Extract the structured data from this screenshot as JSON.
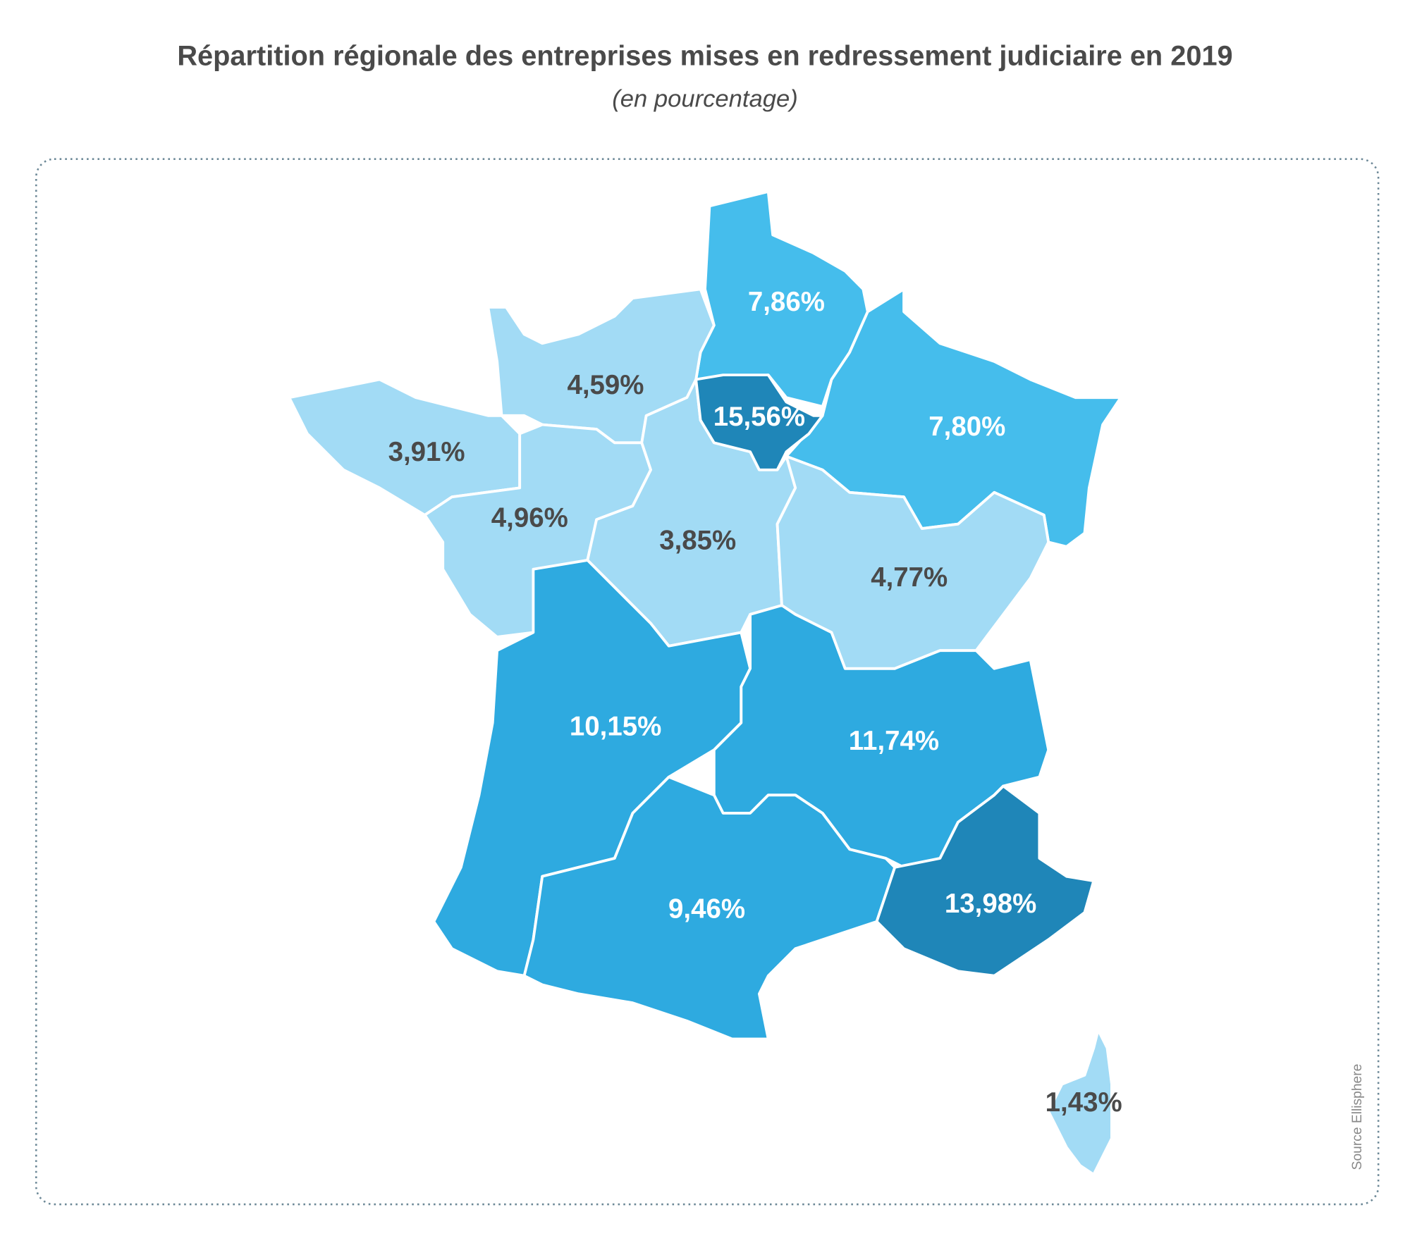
{
  "map": {
    "title": "Répartition régionale des entreprises mises en redressement judiciaire en 2019",
    "subtitle": "(en pourcentage)",
    "source": "Source Ellisphere",
    "values": [
      7.86,
      7.8,
      15.56,
      4.59,
      3.91,
      4.96,
      3.85,
      4.77,
      10.15,
      11.74,
      9.46,
      13.98,
      1.43
    ],
    "value_labels": [
      "7,86%",
      "7,80%",
      "15,56%",
      "4,59%",
      "3,91%",
      "4,96%",
      "3,85%",
      "4,77%",
      "10,15%",
      "11,74%",
      "9,46%",
      "13,98%",
      "1,43%"
    ],
    "colors": [
      "#45bdec",
      "#45bdec",
      "#1f86b8",
      "#a2dbf5",
      "#a2dbf5",
      "#a2dbf5",
      "#a2dbf5",
      "#a2dbf5",
      "#2eaae0",
      "#2eaae0",
      "#2eaae0",
      "#1f86b8",
      "#a2dbf5"
    ]
  }
}
